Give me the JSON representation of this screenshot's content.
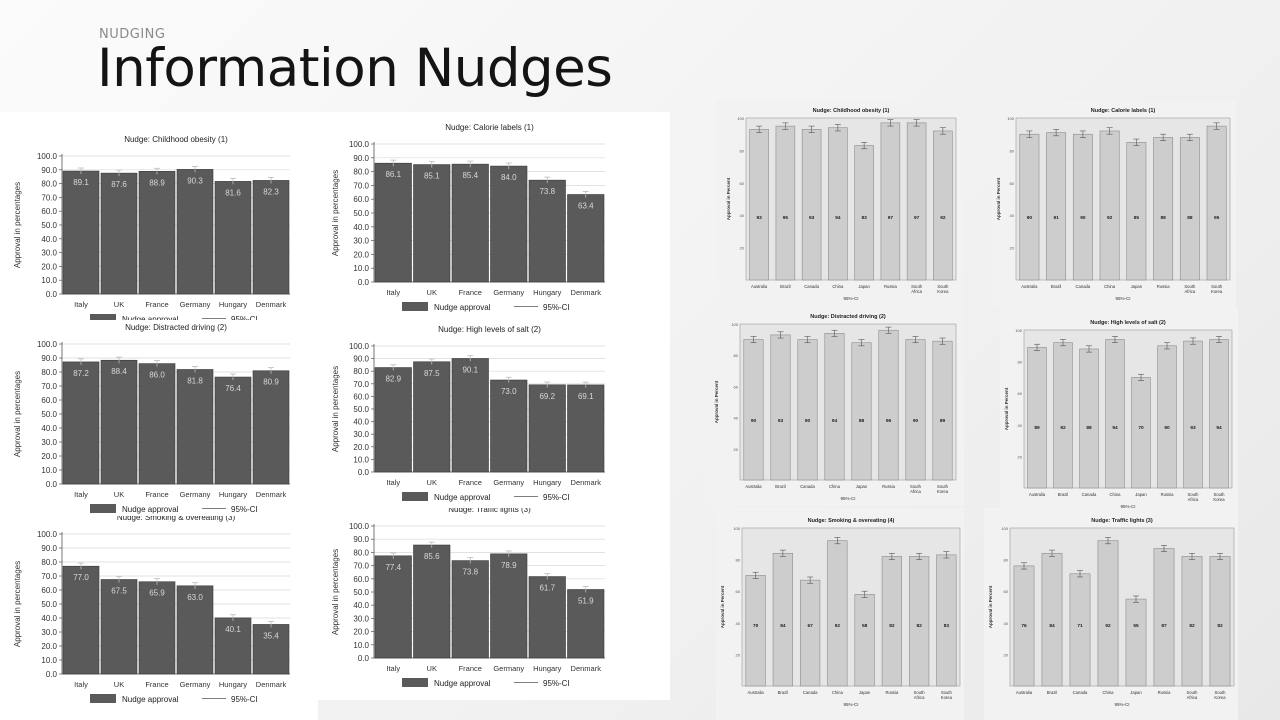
{
  "slide": {
    "eyebrow": "NUDGING",
    "title": "Information Nudges"
  },
  "styles": {
    "europe_bar_color": "#5a5a5a",
    "world_bar_color": "#cdcdcd",
    "world_bar_stroke": "#8c8c8c",
    "world_plot_bg": "#e6e6e6"
  },
  "chart_data": [
    {
      "type": "bar",
      "title": "Nudge: Childhood obesity (1)",
      "categories": [
        "Italy",
        "UK",
        "France",
        "Germany",
        "Hungary",
        "Denmark"
      ],
      "series": [
        {
          "name": "Nudge approval",
          "values": [
            89.1,
            87.6,
            88.9,
            90.3,
            81.6,
            82.3
          ]
        }
      ],
      "value_labels": [
        "89.1",
        "87.6",
        "88.9",
        "90.3",
        "81.6",
        "82.3"
      ],
      "error_bar_label": "95%-CI",
      "ylabel": "Approval in percentages",
      "ylim": [
        0,
        100
      ],
      "yticks": [
        "0.0",
        "10.0",
        "20.0",
        "30.0",
        "40.0",
        "50.0",
        "60.0",
        "70.0",
        "80.0",
        "90.0",
        "100.0"
      ],
      "grid": true,
      "legend": "bottom"
    },
    {
      "type": "bar",
      "title": "Nudge: Distracted driving (2)",
      "categories": [
        "Italy",
        "UK",
        "France",
        "Germany",
        "Hungary",
        "Denmark"
      ],
      "series": [
        {
          "name": "Nudge approval",
          "values": [
            87.2,
            88.4,
            86.0,
            81.8,
            76.4,
            80.9
          ]
        }
      ],
      "value_labels": [
        "87.2",
        "88.4",
        "86.0",
        "81.8",
        "76.4",
        "80.9"
      ],
      "error_bar_label": "95%-CI",
      "ylabel": "Approval in percentages",
      "ylim": [
        0,
        100
      ],
      "yticks": [
        "0.0",
        "10.0",
        "20.0",
        "30.0",
        "40.0",
        "50.0",
        "60.0",
        "70.0",
        "80.0",
        "90.0",
        "100.0"
      ],
      "grid": true,
      "legend": "bottom"
    },
    {
      "type": "bar",
      "title": "Nudge: Smoking & overeating (3)",
      "categories": [
        "Italy",
        "UK",
        "France",
        "Germany",
        "Hungary",
        "Denmark"
      ],
      "series": [
        {
          "name": "Nudge approval",
          "values": [
            77.0,
            67.5,
            65.9,
            63.0,
            40.1,
            35.4
          ]
        }
      ],
      "value_labels": [
        "77.0",
        "67.5",
        "65.9",
        "63.0",
        "40.1",
        "35.4"
      ],
      "error_bar_label": "95%-CI",
      "ylabel": "Approval in percentages",
      "ylim": [
        0,
        100
      ],
      "yticks": [
        "0.0",
        "10.0",
        "20.0",
        "30.0",
        "40.0",
        "50.0",
        "60.0",
        "70.0",
        "80.0",
        "90.0",
        "100.0"
      ],
      "grid": true,
      "legend": "bottom"
    },
    {
      "type": "bar",
      "title": "Nudge: Calorie labels (1)",
      "categories": [
        "Italy",
        "UK",
        "France",
        "Germany",
        "Hungary",
        "Denmark"
      ],
      "series": [
        {
          "name": "Nudge approval",
          "values": [
            86.1,
            85.1,
            85.4,
            84.0,
            73.8,
            63.4
          ]
        }
      ],
      "value_labels": [
        "86.1",
        "85.1",
        "85.4",
        "84.0",
        "73.8",
        "63.4"
      ],
      "error_bar_label": "95%-CI",
      "ylabel": "Approval in percentages",
      "ylim": [
        0,
        100
      ],
      "yticks": [
        "0.0",
        "10.0",
        "20.0",
        "30.0",
        "40.0",
        "50.0",
        "60.0",
        "70.0",
        "80.0",
        "90.0",
        "100.0"
      ],
      "grid": true,
      "legend": "bottom"
    },
    {
      "type": "bar",
      "title": "Nudge: High levels of salt (2)",
      "categories": [
        "Italy",
        "UK",
        "France",
        "Germany",
        "Hungary",
        "Denmark"
      ],
      "series": [
        {
          "name": "Nudge approval",
          "values": [
            82.9,
            87.5,
            90.1,
            73.0,
            69.2,
            69.1
          ]
        }
      ],
      "value_labels": [
        "82.9",
        "87.5",
        "90.1",
        "73.0",
        "69.2",
        "69.1"
      ],
      "error_bar_label": "95%-CI",
      "ylabel": "Approval in percentages",
      "ylim": [
        0,
        100
      ],
      "yticks": [
        "0.0",
        "10.0",
        "20.0",
        "30.0",
        "40.0",
        "50.0",
        "60.0",
        "70.0",
        "80.0",
        "90.0",
        "100.0"
      ],
      "grid": true,
      "legend": "bottom"
    },
    {
      "type": "bar",
      "title": "Nudge: Traffic lights (3)",
      "categories": [
        "Italy",
        "UK",
        "France",
        "Germany",
        "Hungary",
        "Denmark"
      ],
      "series": [
        {
          "name": "Nudge approval",
          "values": [
            77.4,
            85.6,
            73.8,
            78.9,
            61.7,
            51.9
          ]
        }
      ],
      "value_labels": [
        "77.4",
        "85.6",
        "73.8",
        "78.9",
        "61.7",
        "51.9"
      ],
      "error_bar_label": "95%-CI",
      "ylabel": "Approval in percentages",
      "ylim": [
        0,
        100
      ],
      "yticks": [
        "0.0",
        "10.0",
        "20.0",
        "30.0",
        "40.0",
        "50.0",
        "60.0",
        "70.0",
        "80.0",
        "90.0",
        "100.0"
      ],
      "grid": true,
      "legend": "bottom"
    },
    {
      "type": "bar",
      "title": "Nudge: Childhood obesity (1)",
      "categories": [
        "Australia",
        "Brazil",
        "Canada",
        "China",
        "Japan",
        "Russia",
        "South Africa",
        "South Korea"
      ],
      "series": [
        {
          "values": [
            93,
            95,
            93,
            94,
            83,
            97,
            97,
            92
          ]
        }
      ],
      "value_labels": [
        "93",
        "95",
        "93",
        "94",
        "83",
        "97",
        "97",
        "92"
      ],
      "xlabel": "95%-CI",
      "ylabel": "Approval in Percent",
      "ylim": [
        0,
        100
      ],
      "yticks": [
        "20",
        "40",
        "60",
        "80",
        "100"
      ]
    },
    {
      "type": "bar",
      "title": "Nudge: Calorie labels (1)",
      "categories": [
        "Australia",
        "Brazil",
        "Canada",
        "China",
        "Japan",
        "Russia",
        "South Africa",
        "South Korea"
      ],
      "series": [
        {
          "values": [
            90,
            91,
            90,
            92,
            85,
            88,
            88,
            95
          ]
        }
      ],
      "value_labels": [
        "90",
        "91",
        "90",
        "92",
        "85",
        "88",
        "88",
        "95"
      ],
      "xlabel": "95%-CI",
      "ylabel": "Approval in Percent",
      "ylim": [
        0,
        100
      ],
      "yticks": [
        "20",
        "40",
        "60",
        "80",
        "100"
      ]
    },
    {
      "type": "bar",
      "title": "Nudge: Distracted driving (2)",
      "categories": [
        "Australia",
        "Brazil",
        "Canada",
        "China",
        "Japan",
        "Russia",
        "South Africa",
        "South Korea"
      ],
      "series": [
        {
          "values": [
            90,
            93,
            90,
            94,
            88,
            96,
            90,
            89
          ]
        }
      ],
      "value_labels": [
        "90",
        "93",
        "90",
        "94",
        "88",
        "96",
        "90",
        "89"
      ],
      "xlabel": "95%-CI",
      "ylabel": "Approval in Percent",
      "ylim": [
        0,
        100
      ],
      "yticks": [
        "20",
        "40",
        "60",
        "80",
        "100"
      ]
    },
    {
      "type": "bar",
      "title": "Nudge: High levels of salt (2)",
      "categories": [
        "Australia",
        "Brazil",
        "Canada",
        "China",
        "Japan",
        "Russia",
        "South Africa",
        "South Korea"
      ],
      "series": [
        {
          "values": [
            89,
            92,
            88,
            94,
            70,
            90,
            93,
            94
          ]
        }
      ],
      "value_labels": [
        "89",
        "92",
        "88",
        "94",
        "70",
        "90",
        "93",
        "94"
      ],
      "xlabel": "95%-CI",
      "ylabel": "Approval in Percent",
      "ylim": [
        0,
        100
      ],
      "yticks": [
        "20",
        "40",
        "60",
        "80",
        "100"
      ]
    },
    {
      "type": "bar",
      "title": "Nudge: Smoking & overeating (4)",
      "categories": [
        "Australia",
        "Brazil",
        "Canada",
        "China",
        "Japan",
        "Russia",
        "South Africa",
        "South Korea"
      ],
      "series": [
        {
          "values": [
            70,
            84,
            67,
            92,
            58,
            82,
            82,
            83
          ]
        }
      ],
      "value_labels": [
        "70",
        "84",
        "67",
        "92",
        "58",
        "82",
        "82",
        "83"
      ],
      "xlabel": "95%-CI",
      "ylabel": "Approval in Percent",
      "ylim": [
        0,
        100
      ],
      "yticks": [
        "20",
        "40",
        "60",
        "80",
        "100"
      ]
    },
    {
      "type": "bar",
      "title": "Nudge: Traffic lights (3)",
      "categories": [
        "Australia",
        "Brazil",
        "Canada",
        "China",
        "Japan",
        "Russia",
        "South Africa",
        "South Korea"
      ],
      "series": [
        {
          "values": [
            76,
            84,
            71,
            92,
            55,
            87,
            82,
            82
          ]
        }
      ],
      "value_labels": [
        "76",
        "84",
        "71",
        "92",
        "55",
        "87",
        "82",
        "82"
      ],
      "xlabel": "95%-CI",
      "ylabel": "Approval in Percent",
      "ylim": [
        0,
        100
      ],
      "yticks": [
        "20",
        "40",
        "60",
        "80",
        "100"
      ]
    }
  ]
}
